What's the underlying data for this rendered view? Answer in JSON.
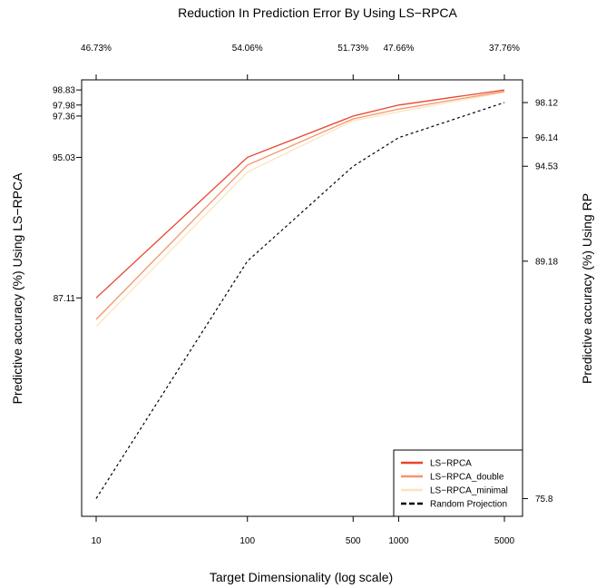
{
  "chart_data": {
    "type": "line",
    "title": "Reduction In Prediction Error By Using LS−RPCA",
    "xlabel": "Target Dimensionality (log scale)",
    "ylabel_left": "Predictive accuracy (%) Using LS−RPCA",
    "ylabel_right": "Predictive accuracy (%) Using RP",
    "x_scale": "log",
    "x": [
      10,
      100,
      500,
      1000,
      5000
    ],
    "x_tick_labels": [
      "10",
      "100",
      "500",
      "1000",
      "5000"
    ],
    "top_tick_labels": [
      "46.73%",
      "54.06%",
      "51.73%",
      "47.66%",
      "37.76%"
    ],
    "left_tick_values": [
      87.11,
      95.03,
      97.36,
      97.98,
      98.83
    ],
    "left_tick_labels": [
      "87.11",
      "95.03",
      "97.36",
      "97.98",
      "98.83"
    ],
    "right_tick_values": [
      75.8,
      89.18,
      94.53,
      96.14,
      98.12
    ],
    "right_tick_labels": [
      "75.8",
      "89.18",
      "94.53",
      "96.14",
      "98.12"
    ],
    "ylim": [
      74.8,
      99.4
    ],
    "series": [
      {
        "name": "LS−RPCA",
        "values": [
          87.11,
          95.03,
          97.36,
          97.98,
          98.83
        ],
        "color": "#e8452c",
        "dash": "solid"
      },
      {
        "name": "LS−RPCA_double",
        "values": [
          85.9,
          94.6,
          97.2,
          97.75,
          98.75
        ],
        "color": "#f4956a",
        "dash": "solid"
      },
      {
        "name": "LS−RPCA_minimal",
        "values": [
          85.5,
          94.2,
          97.1,
          97.6,
          98.7
        ],
        "color": "#fde3c0",
        "dash": "solid"
      },
      {
        "name": "Random Projection",
        "values": [
          75.8,
          89.18,
          94.53,
          96.14,
          98.12
        ],
        "color": "#000000",
        "dash": "dashed"
      }
    ],
    "legend_position": "bottom-right",
    "grid": false
  }
}
